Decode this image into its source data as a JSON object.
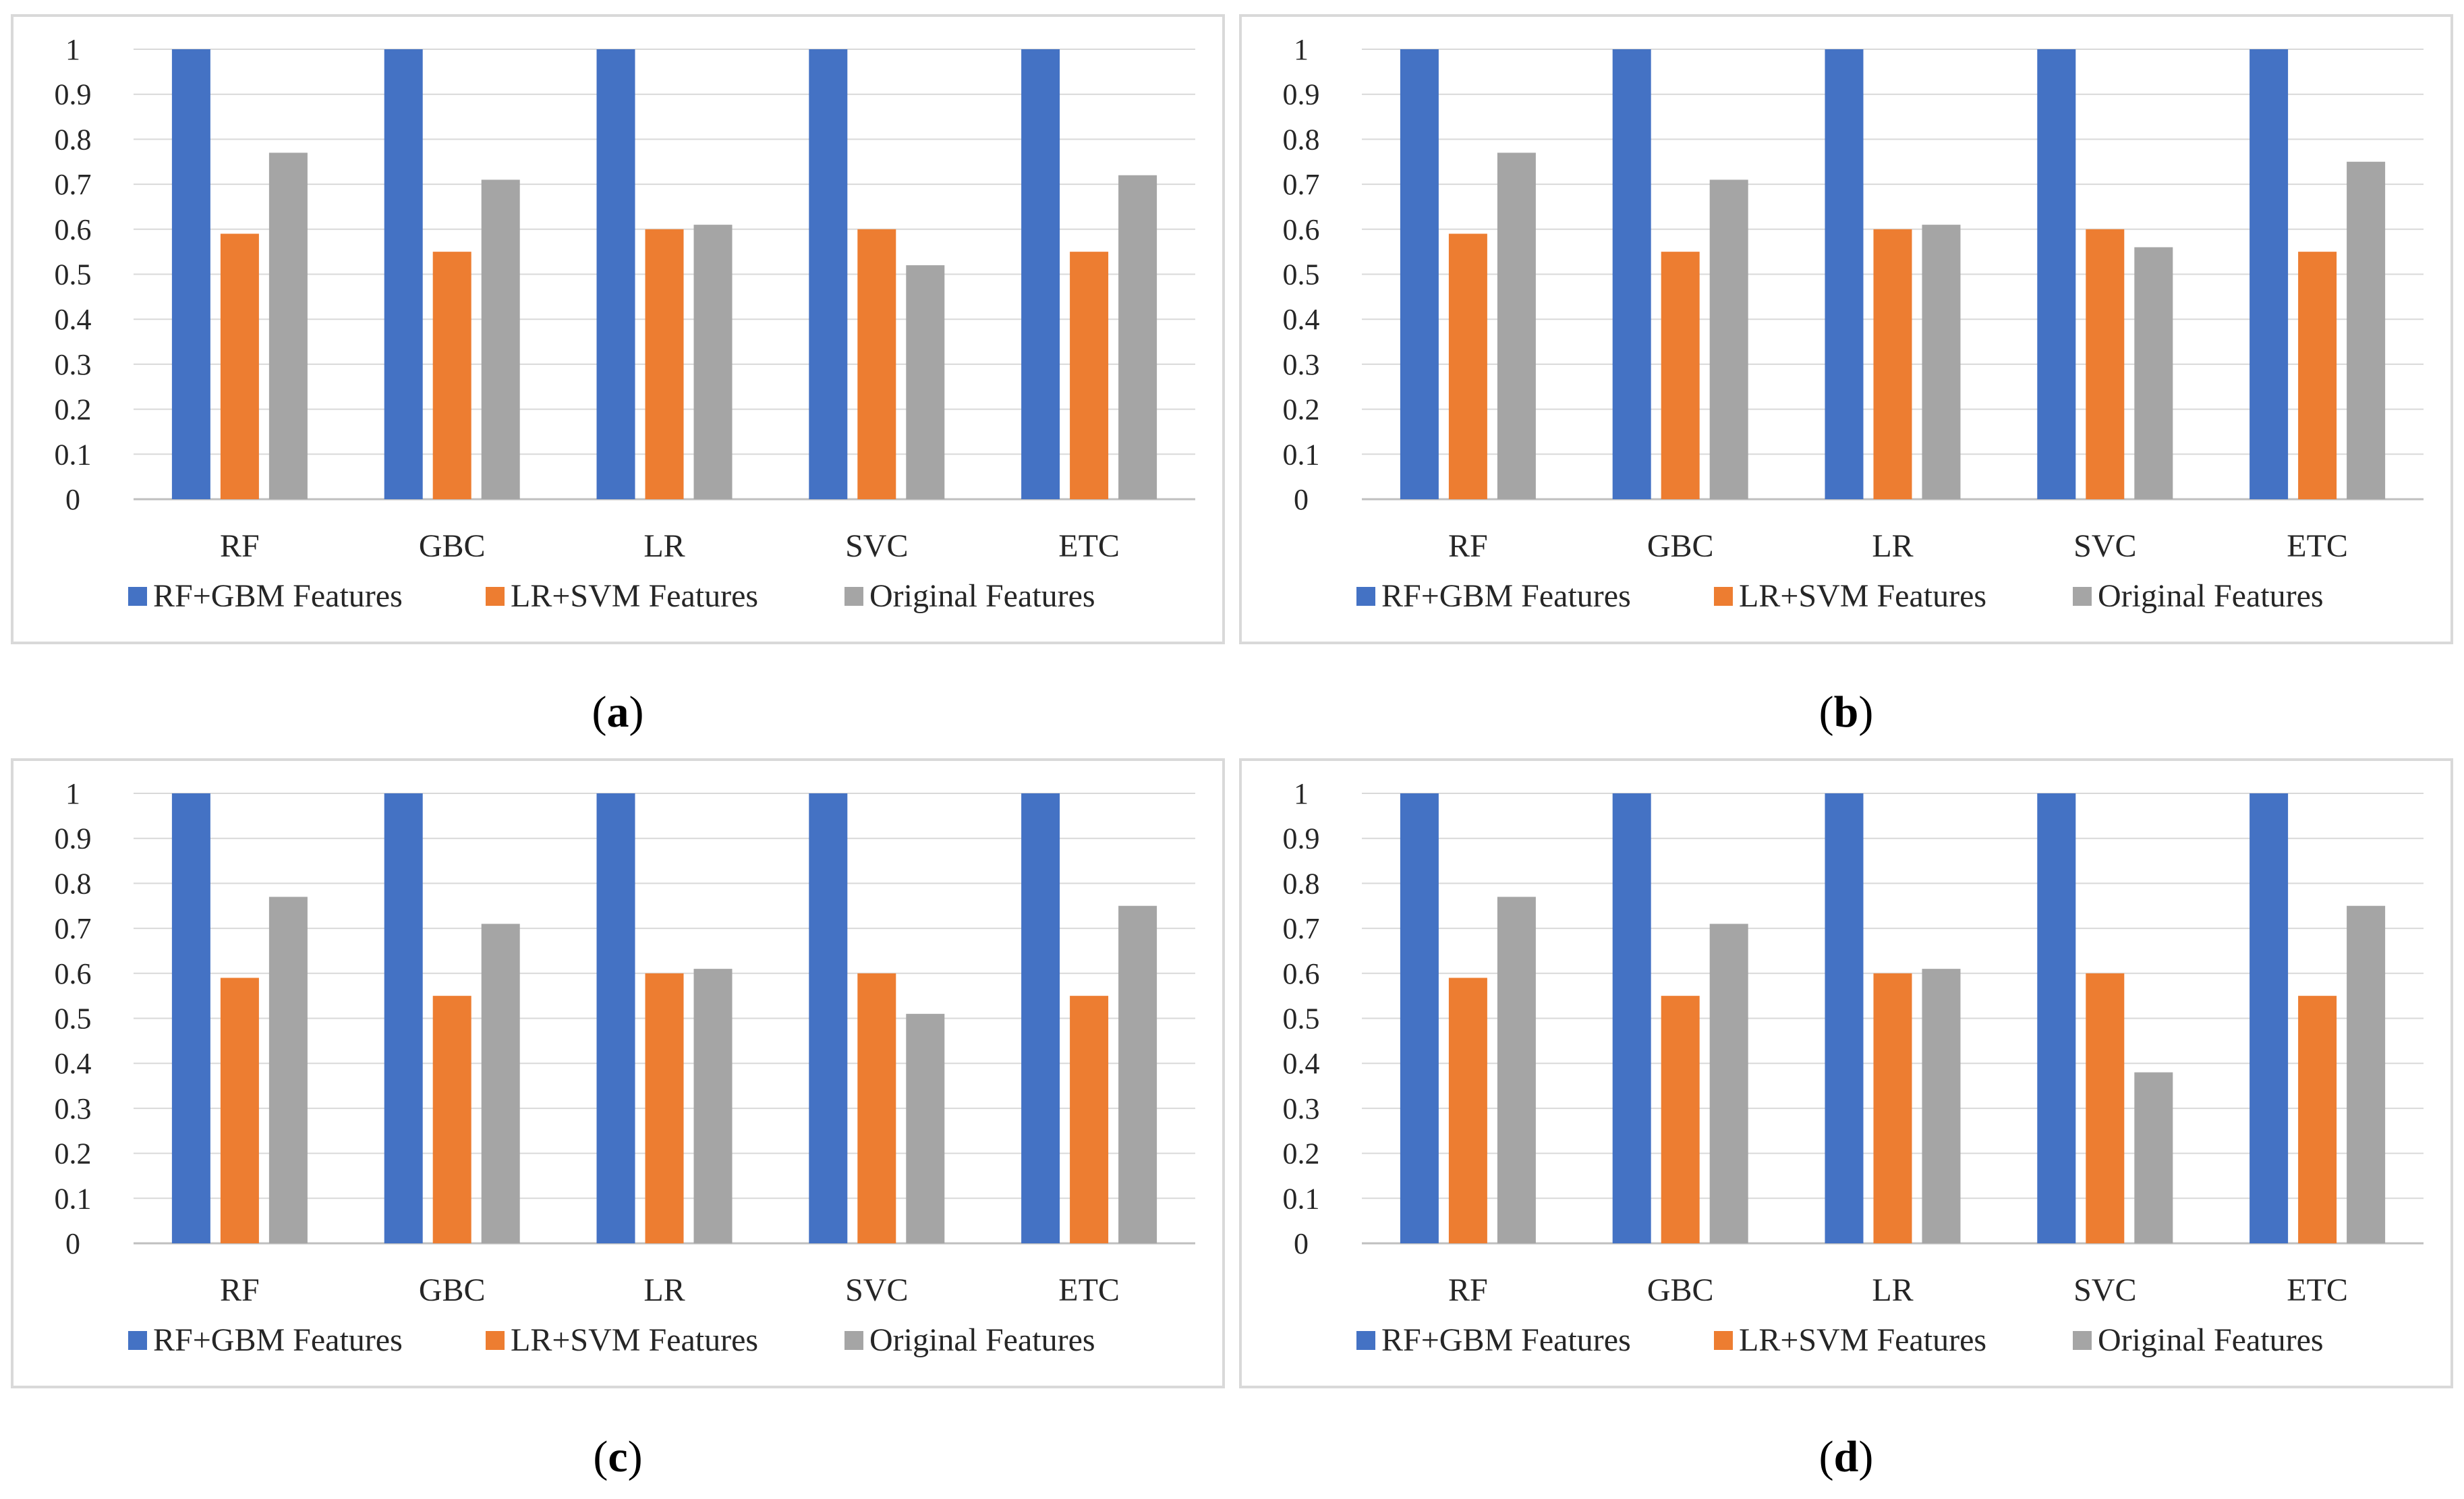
{
  "series_names": [
    "RF+GBM Features",
    "LR+SVM Features",
    "Original Features"
  ],
  "colors": {
    "RF+GBM Features": "#4472c4",
    "LR+SVM Features": "#ed7d31",
    "Original Features": "#a5a5a5"
  },
  "chart_data": [
    {
      "type": "bar",
      "caption": "a",
      "categories": [
        "RF",
        "GBC",
        "LR",
        "SVC",
        "ETC"
      ],
      "series": [
        {
          "name": "RF+GBM Features",
          "values": [
            1,
            1,
            1,
            1,
            1
          ]
        },
        {
          "name": "LR+SVM Features",
          "values": [
            0.59,
            0.55,
            0.6,
            0.6,
            0.55
          ]
        },
        {
          "name": "Original Features",
          "values": [
            0.77,
            0.71,
            0.61,
            0.52,
            0.72
          ]
        }
      ],
      "ylim": [
        0,
        1
      ],
      "yticks": [
        "0",
        "0.1",
        "0.2",
        "0.3",
        "0.4",
        "0.5",
        "0.6",
        "0.7",
        "0.8",
        "0.9",
        "1"
      ],
      "grid": true,
      "legend": "bottom"
    },
    {
      "type": "bar",
      "caption": "b",
      "categories": [
        "RF",
        "GBC",
        "LR",
        "SVC",
        "ETC"
      ],
      "series": [
        {
          "name": "RF+GBM Features",
          "values": [
            1,
            1,
            1,
            1,
            1
          ]
        },
        {
          "name": "LR+SVM Features",
          "values": [
            0.59,
            0.55,
            0.6,
            0.6,
            0.55
          ]
        },
        {
          "name": "Original Features",
          "values": [
            0.77,
            0.71,
            0.61,
            0.56,
            0.75
          ]
        }
      ],
      "ylim": [
        0,
        1
      ],
      "yticks": [
        "0",
        "0.1",
        "0.2",
        "0.3",
        "0.4",
        "0.5",
        "0.6",
        "0.7",
        "0.8",
        "0.9",
        "1"
      ],
      "grid": true,
      "legend": "bottom"
    },
    {
      "type": "bar",
      "caption": "c",
      "categories": [
        "RF",
        "GBC",
        "LR",
        "SVC",
        "ETC"
      ],
      "series": [
        {
          "name": "RF+GBM Features",
          "values": [
            1,
            1,
            1,
            1,
            1
          ]
        },
        {
          "name": "LR+SVM Features",
          "values": [
            0.59,
            0.55,
            0.6,
            0.6,
            0.55
          ]
        },
        {
          "name": "Original Features",
          "values": [
            0.77,
            0.71,
            0.61,
            0.51,
            0.75
          ]
        }
      ],
      "ylim": [
        0,
        1
      ],
      "yticks": [
        "0",
        "0.1",
        "0.2",
        "0.3",
        "0.4",
        "0.5",
        "0.6",
        "0.7",
        "0.8",
        "0.9",
        "1"
      ],
      "grid": true,
      "legend": "bottom"
    },
    {
      "type": "bar",
      "caption": "d",
      "categories": [
        "RF",
        "GBC",
        "LR",
        "SVC",
        "ETC"
      ],
      "series": [
        {
          "name": "RF+GBM Features",
          "values": [
            1,
            1,
            1,
            1,
            1
          ]
        },
        {
          "name": "LR+SVM Features",
          "values": [
            0.59,
            0.55,
            0.6,
            0.6,
            0.55
          ]
        },
        {
          "name": "Original Features",
          "values": [
            0.77,
            0.71,
            0.61,
            0.38,
            0.75
          ]
        }
      ],
      "ylim": [
        0,
        1
      ],
      "yticks": [
        "0",
        "0.1",
        "0.2",
        "0.3",
        "0.4",
        "0.5",
        "0.6",
        "0.7",
        "0.8",
        "0.9",
        "1"
      ],
      "grid": true,
      "legend": "bottom"
    }
  ]
}
